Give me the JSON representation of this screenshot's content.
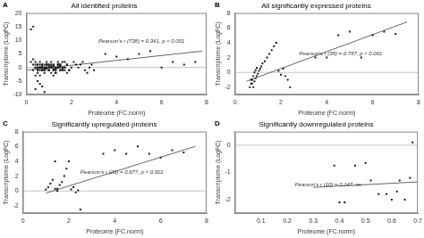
{
  "chart_data": [
    {
      "type": "scatter",
      "panel_label": "A",
      "title": "All identified proteins",
      "xlabel": "Proteome (FC.norm)",
      "ylabel": "Transcriptome (LogFC)",
      "xlim": [
        0,
        8
      ],
      "ylim": [
        -10,
        20
      ],
      "xticks": [
        0,
        2,
        4,
        6,
        8
      ],
      "yticks": [
        -10,
        -5,
        0,
        5,
        10,
        15,
        20
      ],
      "grid": false,
      "hlines": [
        {
          "y": 0,
          "color": "#aaaaaa"
        }
      ],
      "annotations": [
        {
          "text": "Pearson's r (738) = 0.341, p < 0.001",
          "x": 3.2,
          "y": 8.5
        }
      ],
      "series": [
        {
          "type": "scatter",
          "marker": "square",
          "color": "#1a1a1a",
          "x": [
            0.2,
            0.3,
            0.4,
            0.5,
            0.6,
            0.7,
            0.8,
            0.9,
            1.0,
            1.1,
            1.2,
            1.3,
            1.4,
            1.5,
            0.3,
            0.4,
            0.5,
            0.6,
            0.7,
            0.8,
            0.9,
            1.0,
            1.1,
            1.2,
            1.3,
            1.4,
            1.5,
            1.6,
            1.7,
            0.4,
            0.5,
            0.6,
            0.7,
            0.8,
            0.9,
            1.0,
            1.1,
            1.2,
            1.3,
            1.4,
            1.5,
            1.6,
            1.7,
            1.8,
            0.5,
            0.6,
            0.7,
            0.8,
            0.9,
            1.0,
            1.1,
            1.2,
            1.3,
            1.4,
            1.5,
            1.6,
            1.7,
            1.8,
            1.9,
            0.3,
            0.4,
            0.5,
            0.6,
            0.7,
            0.8,
            0.9,
            1.0,
            1.1,
            1.2,
            1.3,
            1.4,
            1.5,
            0.4,
            0.5,
            0.6,
            0.7,
            0.8,
            0.9,
            1.0,
            1.1,
            1.2,
            1.3,
            1.4,
            0.6,
            0.7,
            0.8,
            0.9,
            1.0,
            1.1,
            1.2,
            1.3,
            1.4,
            1.5,
            1.6,
            1.7,
            1.8,
            1.9,
            2.0,
            2.1,
            2.2,
            2.3,
            2.4,
            2.5,
            2.6,
            2.7,
            2.8,
            2.9,
            3.0,
            0.5,
            0.6,
            0.7,
            0.8,
            0.9,
            1.0,
            1.1,
            1.2,
            1.3,
            1.4,
            1.5,
            1.6,
            3.5,
            4.0,
            4.5,
            5.0,
            5.5,
            6.0,
            6.5,
            7.0,
            7.5,
            0.3,
            0.5,
            0.7,
            0.2,
            0.4,
            0.6,
            0.8
          ],
          "y": [
            2,
            1,
            0,
            -1,
            0,
            1,
            -1,
            0,
            0.5,
            1,
            -0.5,
            0,
            1,
            -1,
            3,
            2,
            1,
            0,
            -1,
            -2,
            2,
            1,
            0,
            -1,
            -2,
            1,
            -1,
            0,
            2,
            -3,
            0,
            1,
            -1,
            0,
            1,
            -1,
            0,
            0.5,
            -0.5,
            0,
            1,
            2,
            -1,
            -2,
            0,
            -1,
            0,
            1,
            -0.5,
            0,
            0.5,
            1,
            -0.5,
            0,
            0.5,
            -0.5,
            0,
            1,
            -1,
            -1,
            0,
            1,
            2,
            -1,
            0,
            1,
            -1,
            0,
            1,
            -2,
            2,
            0,
            1,
            -1,
            0,
            0.5,
            -0.5,
            1,
            -1,
            0,
            0.5,
            -0.5,
            1,
            0,
            1,
            -1,
            0,
            1,
            2,
            -1,
            -2,
            0,
            1,
            -1,
            0,
            1,
            -1,
            0,
            2,
            1,
            0,
            1,
            2,
            -1,
            -2,
            0,
            1,
            -1,
            -2,
            -3,
            -1,
            0,
            1,
            -1,
            -2,
            -3,
            -1,
            0,
            1,
            -1,
            5,
            4,
            3,
            5,
            6,
            0,
            2,
            1,
            2,
            15,
            -5,
            -7,
            14,
            -8,
            -6,
            -9
          ]
        },
        {
          "type": "line",
          "line_style": "solid",
          "color": "#666666",
          "x": [
            0.0,
            7.8
          ],
          "y": [
            -1.0,
            6.0
          ]
        }
      ]
    },
    {
      "type": "scatter",
      "panel_label": "B",
      "title": "All significantly expressed proteins",
      "xlabel": "Proteome (FC.norm)",
      "ylabel": "Transcriptome (LogFC)",
      "xlim": [
        0,
        8
      ],
      "ylim": [
        -3,
        8
      ],
      "xticks": [
        0,
        2,
        4,
        6,
        8
      ],
      "yticks": [
        -2,
        0,
        2,
        4,
        6,
        8
      ],
      "grid": false,
      "hlines": [
        {
          "y": 0,
          "color": "#aaaaaa"
        }
      ],
      "annotations": [
        {
          "text": "Pearson's r (38) = 0.787, p < 0.001",
          "x": 2.8,
          "y": 2.2
        }
      ],
      "series": [
        {
          "type": "scatter",
          "marker": "square",
          "color": "#1a1a1a",
          "x": [
            0.7,
            0.75,
            0.8,
            0.85,
            0.9,
            0.95,
            1.0,
            1.05,
            1.1,
            1.15,
            1.2,
            1.3,
            1.4,
            1.5,
            1.6,
            1.7,
            1.8,
            1.9,
            2.0,
            2.1,
            2.2,
            2.3,
            2.4,
            0.65,
            0.7,
            0.75,
            0.8,
            0.85,
            0.9,
            0.95,
            3.5,
            4.0,
            4.5,
            5.0,
            5.5,
            6.0,
            6.5,
            7.0
          ],
          "y": [
            -1.0,
            -1.5,
            -2.0,
            -1.2,
            -0.8,
            -0.5,
            -0.2,
            0.2,
            0.5,
            0.8,
            1.2,
            1.5,
            2.0,
            2.5,
            3.0,
            3.5,
            4.0,
            0.2,
            -0.3,
            0.5,
            -0.5,
            -1.0,
            -2.0,
            -2.0,
            -1.5,
            -1.0,
            -0.5,
            0.0,
            0.3,
            0.6,
            2.0,
            2.0,
            5.0,
            5.5,
            2.0,
            5.0,
            5.5,
            5.2
          ]
        },
        {
          "type": "line",
          "line_style": "solid",
          "color": "#666666",
          "x": [
            0.5,
            7.5
          ],
          "y": [
            -1.2,
            6.8
          ]
        }
      ]
    },
    {
      "type": "scatter",
      "panel_label": "C",
      "title": "Significantly upregulated proteins",
      "xlabel": "Proteome (FC.norm)",
      "ylabel": "Transcriptome (LogFC)",
      "xlim": [
        0,
        8
      ],
      "ylim": [
        -3,
        8
      ],
      "xticks": [
        0,
        2,
        4,
        6,
        8
      ],
      "yticks": [
        -2,
        0,
        2,
        4,
        6,
        8
      ],
      "grid": false,
      "hlines": [
        {
          "y": 0,
          "color": "#aaaaaa"
        }
      ],
      "annotations": [
        {
          "text": "Pearson's r (26) = 0.677, p < 0.001",
          "x": 2.5,
          "y": 2.2
        }
      ],
      "series": [
        {
          "type": "scatter",
          "marker": "square",
          "color": "#1a1a1a",
          "x": [
            1.0,
            1.1,
            1.2,
            1.3,
            1.4,
            1.5,
            1.6,
            1.7,
            1.8,
            1.9,
            2.0,
            2.1,
            2.2,
            2.3,
            2.4,
            2.5,
            1.5,
            1.4,
            3.5,
            4.0,
            4.5,
            5.0,
            5.5,
            6.0,
            6.5,
            7.0
          ],
          "y": [
            0.2,
            0.5,
            1.0,
            1.5,
            0.3,
            0.0,
            0.8,
            1.2,
            2.0,
            3.0,
            4.0,
            0.2,
            0.5,
            -0.2,
            0.1,
            -2.5,
            0.3,
            4.0,
            5.0,
            5.5,
            5.0,
            6.0,
            5.0,
            4.5,
            5.5,
            5.2
          ]
        },
        {
          "type": "line",
          "line_style": "solid",
          "color": "#666666",
          "x": [
            1.0,
            7.5
          ],
          "y": [
            -0.3,
            6.0
          ]
        }
      ]
    },
    {
      "type": "scatter",
      "panel_label": "D",
      "title": "Significantly downregulated proteins",
      "xlabel": "Proteome (FC.norm)",
      "ylabel": "Transcriptome (LogFC)",
      "xlim": [
        0,
        0.7
      ],
      "ylim": [
        -2.5,
        0.5
      ],
      "xticks": [
        0.1,
        0.2,
        0.3,
        0.4,
        0.5,
        0.6,
        0.7
      ],
      "yticks": [
        -2,
        -1,
        0
      ],
      "grid": false,
      "hlines": [
        {
          "y": 0,
          "color": "#aaaaaa"
        }
      ],
      "annotations": [
        {
          "text": "Pearson's r (10) = 0.147, ns",
          "x": 0.23,
          "y": -1.55
        }
      ],
      "series": [
        {
          "type": "scatter",
          "marker": "square",
          "color": "#1a1a1a",
          "x": [
            0.38,
            0.4,
            0.42,
            0.46,
            0.5,
            0.52,
            0.55,
            0.58,
            0.6,
            0.62,
            0.63,
            0.65,
            0.67,
            0.68
          ],
          "y": [
            -0.75,
            -2.1,
            -2.1,
            -0.75,
            -0.65,
            -1.3,
            -1.8,
            -1.8,
            -2.0,
            -1.7,
            -1.3,
            -2.0,
            -1.2,
            0.1
          ]
        },
        {
          "type": "line",
          "line_style": "solid",
          "color": "#666666",
          "x": [
            0.3,
            0.7
          ],
          "y": [
            -1.55,
            -1.35
          ]
        }
      ]
    }
  ]
}
